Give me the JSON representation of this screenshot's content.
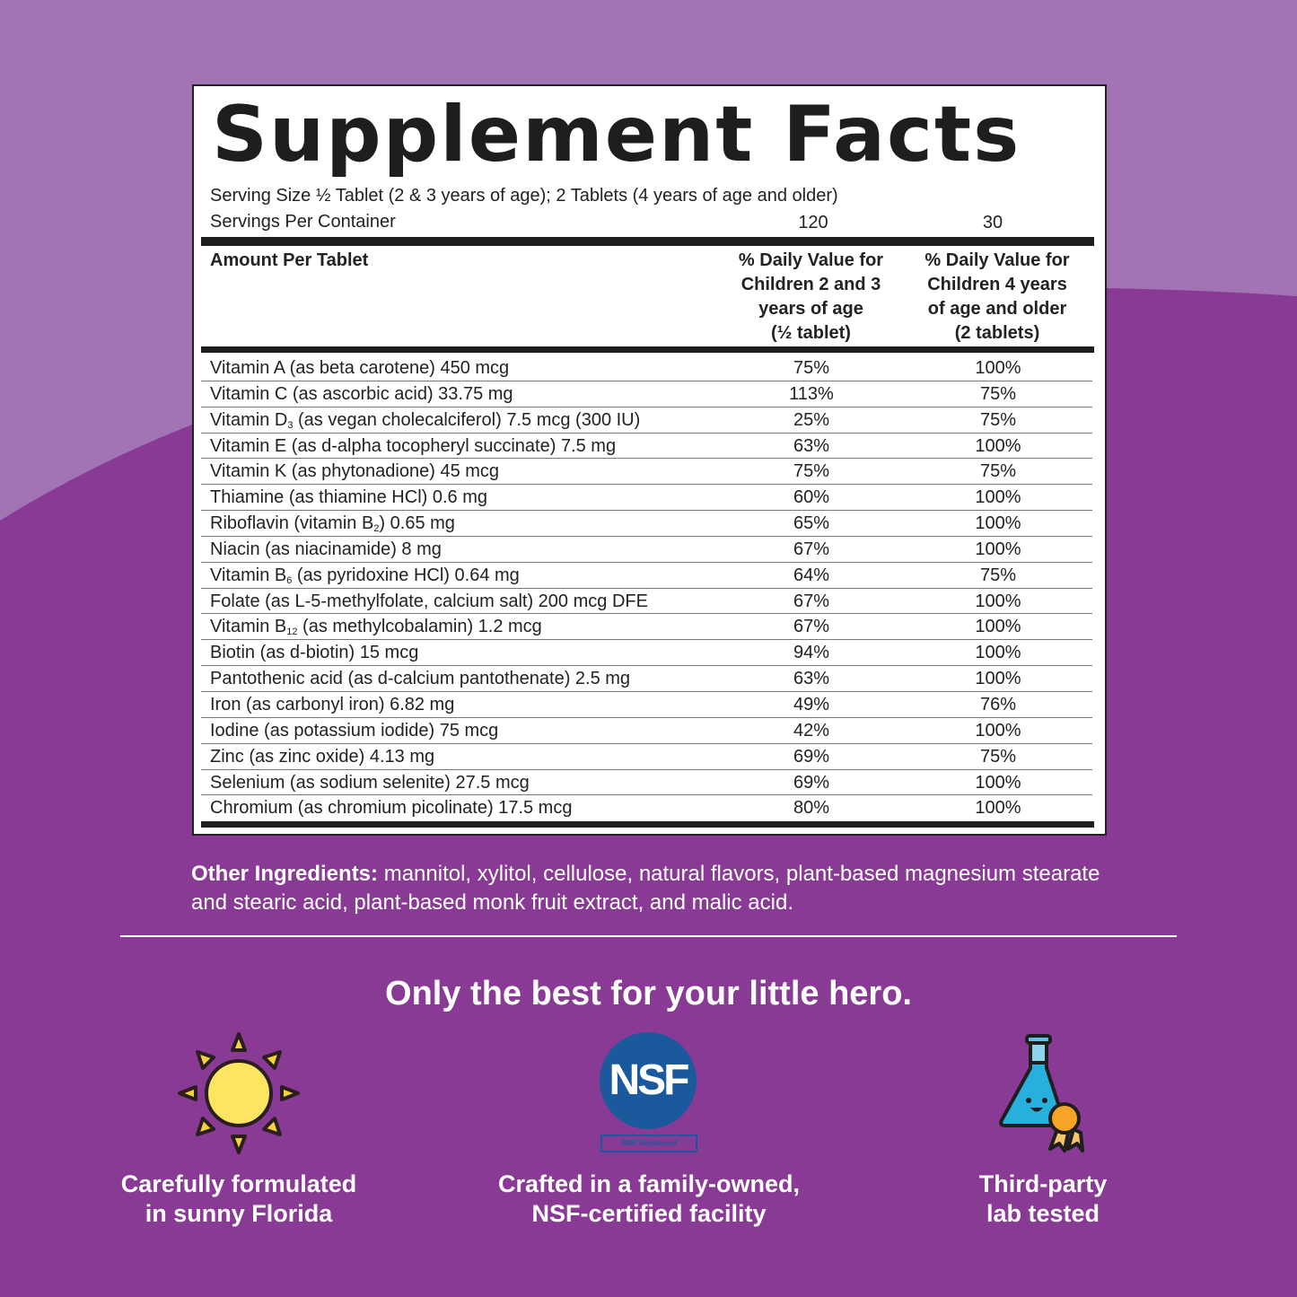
{
  "colors": {
    "bg_top": "#a374b4",
    "bg_bottom": "#893a94",
    "nsf_blue": "#1a5a9c"
  },
  "facts": {
    "title": "Supplement Facts",
    "serving_size": "Serving Size ½ Tablet (2 & 3 years of age); 2 Tablets (4 years of age and older)",
    "servings_label": "Servings Per Container",
    "servings_col1": "120",
    "servings_col2": "30",
    "header_amount": "Amount Per Tablet",
    "header_col1": [
      "% Daily Value for",
      "Children 2 and 3",
      "years of age",
      "(½ tablet)"
    ],
    "header_col2": [
      "% Daily Value for",
      "Children 4 years",
      "of age and older",
      "(2 tablets)"
    ],
    "rows": [
      {
        "pre": "Vitamin A (as beta carotene) 450 mcg",
        "sub": "",
        "post": "",
        "c1": "75%",
        "c2": "100%"
      },
      {
        "pre": "Vitamin C (as ascorbic acid) 33.75 mg",
        "sub": "",
        "post": "",
        "c1": "113%",
        "c2": "75%"
      },
      {
        "pre": "Vitamin D",
        "sub": "3",
        "post": " (as vegan cholecalciferol) 7.5 mcg (300 IU)",
        "c1": "25%",
        "c2": "75%"
      },
      {
        "pre": "Vitamin E (as d-alpha tocopheryl succinate) 7.5 mg",
        "sub": "",
        "post": "",
        "c1": "63%",
        "c2": "100%"
      },
      {
        "pre": "Vitamin K (as phytonadione) 45 mcg",
        "sub": "",
        "post": "",
        "c1": "75%",
        "c2": "75%"
      },
      {
        "pre": "Thiamine (as thiamine HCl) 0.6 mg",
        "sub": "",
        "post": "",
        "c1": "60%",
        "c2": "100%"
      },
      {
        "pre": "Riboflavin (vitamin B",
        "sub": "2",
        "post": ") 0.65 mg",
        "c1": "65%",
        "c2": "100%"
      },
      {
        "pre": "Niacin (as niacinamide) 8 mg",
        "sub": "",
        "post": "",
        "c1": "67%",
        "c2": "100%"
      },
      {
        "pre": "Vitamin B",
        "sub": "6",
        "post": " (as pyridoxine HCl) 0.64 mg",
        "c1": "64%",
        "c2": "75%"
      },
      {
        "pre": "Folate (as L-5-methylfolate, calcium salt) 200 mcg DFE",
        "sub": "",
        "post": "",
        "c1": "67%",
        "c2": "100%"
      },
      {
        "pre": "Vitamin B",
        "sub": "12",
        "post": " (as methylcobalamin) 1.2 mcg",
        "c1": "67%",
        "c2": "100%"
      },
      {
        "pre": "Biotin (as d-biotin) 15 mcg",
        "sub": "",
        "post": "",
        "c1": "94%",
        "c2": "100%"
      },
      {
        "pre": "Pantothenic acid (as d-calcium pantothenate) 2.5 mg",
        "sub": "",
        "post": "",
        "c1": "63%",
        "c2": "100%"
      },
      {
        "pre": "Iron (as carbonyl iron) 6.82 mg",
        "sub": "",
        "post": "",
        "c1": "49%",
        "c2": "76%"
      },
      {
        "pre": "Iodine (as potassium iodide) 75 mcg",
        "sub": "",
        "post": "",
        "c1": "42%",
        "c2": "100%"
      },
      {
        "pre": "Zinc (as zinc oxide) 4.13 mg",
        "sub": "",
        "post": "",
        "c1": "69%",
        "c2": "75%"
      },
      {
        "pre": "Selenium (as sodium selenite) 27.5 mcg",
        "sub": "",
        "post": "",
        "c1": "69%",
        "c2": "100%"
      },
      {
        "pre": "Chromium (as chromium picolinate) 17.5 mcg",
        "sub": "",
        "post": "",
        "c1": "80%",
        "c2": "100%"
      }
    ]
  },
  "other_ingredients": {
    "label": "Other Ingredients:",
    "text": " mannitol, xylitol, cellulose, natural flavors, plant-based magnesium stearate and stearic acid, plant-based monk fruit extract, and malic acid."
  },
  "tagline": "Only the best for your little hero.",
  "features": [
    {
      "icon": "sun-icon",
      "lines": [
        "Carefully formulated",
        "in sunny Florida"
      ]
    },
    {
      "icon": "nsf-logo",
      "logo_text": "NSF",
      "badge": "GMP Registered",
      "lines": [
        "Crafted in a family-owned,",
        "NSF-certified facility"
      ]
    },
    {
      "icon": "flask-ribbon-icon",
      "lines": [
        "Third-party",
        "lab tested"
      ]
    }
  ]
}
